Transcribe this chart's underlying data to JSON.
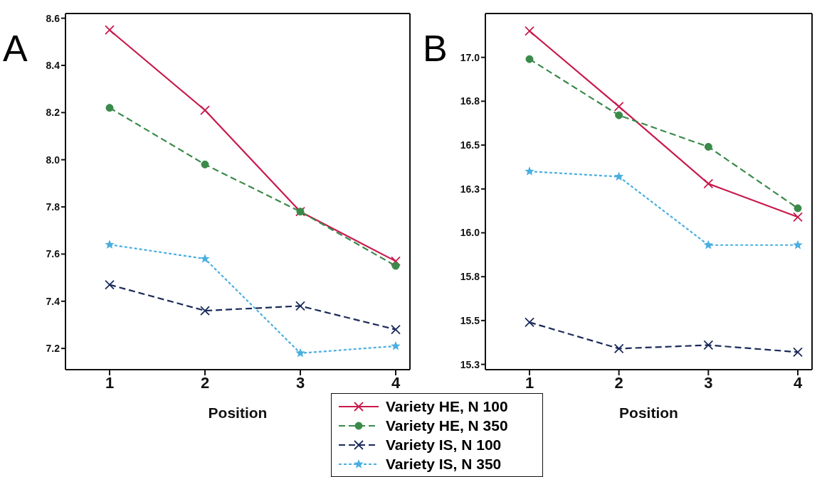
{
  "chart_data": [
    {
      "type": "line",
      "title": "A",
      "xlabel": "Position",
      "categories": [
        "1",
        "2",
        "3",
        "4"
      ],
      "ylim": [
        7.11,
        8.62
      ],
      "yticks": [
        7.2,
        7.4,
        7.6,
        7.8,
        {
          "value": 8,
          "label": "8.0"
        },
        8.2,
        8.4,
        8.6
      ],
      "legend": "bottom",
      "series": [
        {
          "name": "Variety HE, N 100",
          "color": "#c8194b",
          "marker": "cross",
          "line_style": "solid",
          "values": [
            8.55,
            8.21,
            7.78,
            7.57
          ]
        },
        {
          "name": "Variety HE, N 350",
          "color": "#3a8a4a",
          "marker": "circle",
          "line_style": "dashed",
          "values": [
            8.22,
            7.98,
            7.78,
            7.55
          ]
        },
        {
          "name": "Variety IS, N 100",
          "color": "#1a2a5a",
          "marker": "cross",
          "line_style": "dashed",
          "values": [
            7.47,
            7.36,
            7.38,
            7.28
          ]
        },
        {
          "name": "Variety IS, N 350",
          "color": "#4aaee0",
          "marker": "star",
          "line_style": "dotted",
          "values": [
            7.64,
            7.58,
            7.18,
            7.21
          ]
        }
      ]
    },
    {
      "type": "line",
      "title": "B",
      "xlabel": "Position",
      "categories": [
        "1",
        "2",
        "3",
        "4"
      ],
      "ylim": [
        15.22,
        17.25
      ],
      "yticks": [
        {
          "value": 15.25,
          "label": "15.3"
        },
        15.5,
        {
          "value": 15.75,
          "label": "15.8"
        },
        {
          "value": 16,
          "label": "16.0"
        },
        {
          "value": 16.25,
          "label": "16.3"
        },
        16.5,
        {
          "value": 16.75,
          "label": "16.8"
        },
        {
          "value": 17,
          "label": "17.0"
        }
      ],
      "series": [
        {
          "color": "#c8194b",
          "marker": "cross",
          "line_style": "solid",
          "values": [
            17.15,
            16.72,
            16.28,
            16.09
          ]
        },
        {
          "color": "#3a8a4a",
          "marker": "circle",
          "line_style": "dashed",
          "values": [
            16.99,
            16.67,
            16.49,
            16.14
          ]
        },
        {
          "color": "#1a2a5a",
          "marker": "cross",
          "line_style": "dashed",
          "values": [
            15.49,
            15.34,
            15.36,
            15.32
          ]
        },
        {
          "color": "#4aaee0",
          "marker": "star",
          "line_style": "dotted",
          "values": [
            16.35,
            16.32,
            15.93,
            15.93
          ]
        }
      ]
    }
  ]
}
